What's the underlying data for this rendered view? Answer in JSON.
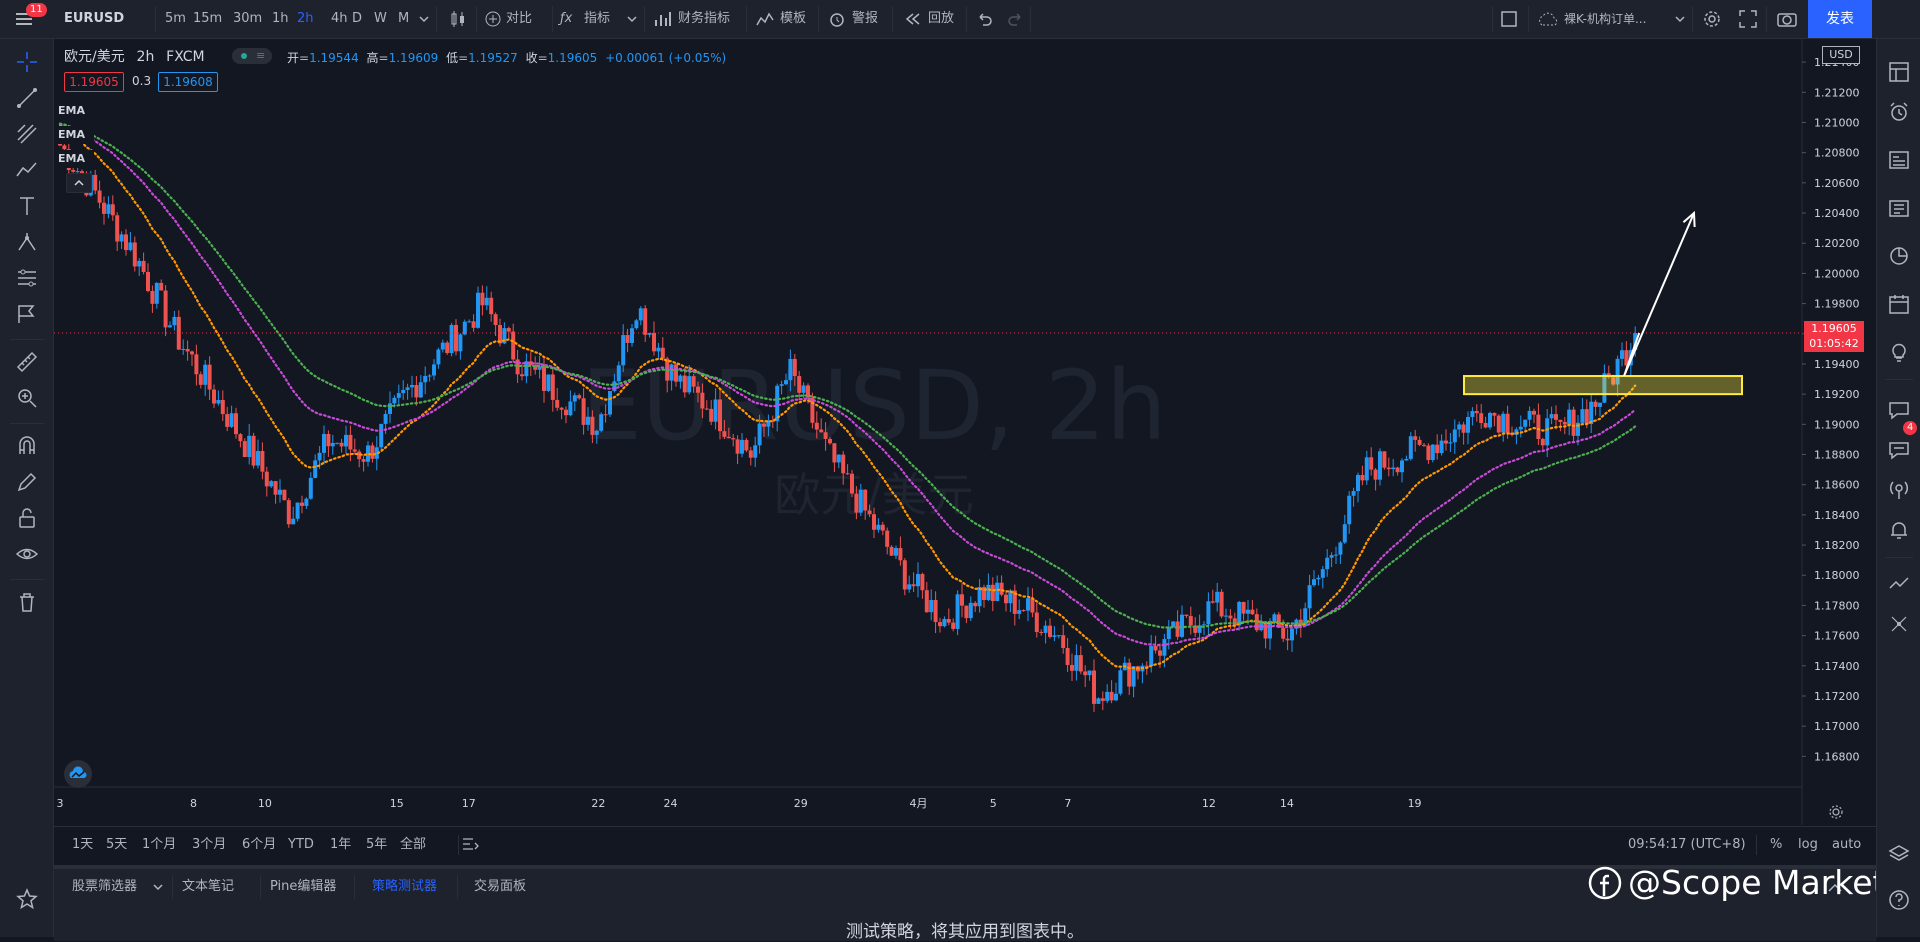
{
  "topbar": {
    "symbol": "EURUSD",
    "notification_count": "11",
    "intervals": [
      "5m",
      "15m",
      "30m",
      "1h",
      "2h",
      "4h",
      "D",
      "W",
      "M"
    ],
    "active_interval": "2h",
    "compare_label": "对比",
    "indicators_label": "指标",
    "financials_label": "财务指标",
    "templates_label": "模板",
    "alert_label": "警报",
    "replay_label": "回放",
    "layout_name": "裸K-机构订单...",
    "publish_label": "发表"
  },
  "legend": {
    "title": "欧元/美元",
    "interval": "2h",
    "source": "FXCM",
    "open_label": "开",
    "open_value": "1.19544",
    "high_label": "高",
    "high_value": "1.19609",
    "low_label": "低",
    "low_value": "1.19527",
    "close_label": "收",
    "close_value": "1.19605",
    "change": "+0.00061 (+0.05%)",
    "bid": "1.19605",
    "spread": "0.3",
    "ask": "1.19608",
    "ema_labels": [
      "EMA",
      "EMA",
      "EMA"
    ]
  },
  "watermark": {
    "symbol": "EURUSD, 2h",
    "name": "欧元/美元"
  },
  "price_axis": {
    "currency": "USD",
    "ticks": [
      "1.21400",
      "1.21200",
      "1.21000",
      "1.20800",
      "1.20600",
      "1.20400",
      "1.20200",
      "1.20000",
      "1.19800",
      "1.19600",
      "1.19400",
      "1.19200",
      "1.19000",
      "1.18800",
      "1.18600",
      "1.18400",
      "1.18200",
      "1.18000",
      "1.17800",
      "1.17600",
      "1.17400",
      "1.17200",
      "1.17000",
      "1.16800"
    ],
    "current_price": "1.19605",
    "countdown": "01:05:42"
  },
  "time_axis": {
    "ticks": [
      "3",
      "8",
      "10",
      "15",
      "17",
      "22",
      "24",
      "29",
      "4月",
      "5",
      "7",
      "12",
      "14",
      "19"
    ]
  },
  "range_bar": {
    "ranges": [
      "1天",
      "5天",
      "1个月",
      "3个月",
      "6个月",
      "YTD",
      "1年",
      "5年",
      "全部"
    ],
    "clock": "09:54:17 (UTC+8)",
    "percent_label": "%",
    "log_label": "log",
    "auto_label": "auto"
  },
  "bottom_panel": {
    "tabs": [
      "股票筛选器",
      "文本笔记",
      "Pine编辑器",
      "策略测试器",
      "交易面板"
    ],
    "active_tab": "策略测试器",
    "message": "测试策略，将其应用到图表中。"
  },
  "overlay": {
    "brand_text": "@Scope Markets"
  },
  "rightbar": {
    "badge_count": "4"
  },
  "colors": {
    "background": "#131722",
    "up": "#2196f3",
    "down": "#ef5350",
    "ema_fast": "#ff9800",
    "ema_mid": "#c84bd8",
    "ema_slow": "#4caf50",
    "zone": "#ffeb3b",
    "accent": "#2962ff"
  },
  "chart_data": {
    "type": "candlestick",
    "symbol": "EURUSD",
    "interval": "2h",
    "ylim": [
      1.1665,
      1.215
    ],
    "close_path": [
      {
        "d": "3",
        "p": 1.2085
      },
      {
        "d": "4",
        "p": 1.205
      },
      {
        "d": "5",
        "p": 1.201
      },
      {
        "d": "6",
        "p": 1.196
      },
      {
        "d": "7",
        "p": 1.192
      },
      {
        "d": "8",
        "p": 1.188
      },
      {
        "d": "9",
        "p": 1.184
      },
      {
        "d": "10",
        "p": 1.189
      },
      {
        "d": "11",
        "p": 1.188
      },
      {
        "d": "12",
        "p": 1.192
      },
      {
        "d": "13",
        "p": 1.195
      },
      {
        "d": "14",
        "p": 1.198
      },
      {
        "d": "15",
        "p": 1.194
      },
      {
        "d": "16",
        "p": 1.192
      },
      {
        "d": "17",
        "p": 1.19
      },
      {
        "d": "18",
        "p": 1.198
      },
      {
        "d": "19",
        "p": 1.193
      },
      {
        "d": "20",
        "p": 1.191
      },
      {
        "d": "22",
        "p": 1.188
      },
      {
        "d": "23",
        "p": 1.1935
      },
      {
        "d": "24",
        "p": 1.188
      },
      {
        "d": "25",
        "p": 1.184
      },
      {
        "d": "26",
        "p": 1.18
      },
      {
        "d": "27",
        "p": 1.177
      },
      {
        "d": "28",
        "p": 1.179
      },
      {
        "d": "29",
        "p": 1.178
      },
      {
        "d": "30",
        "p": 1.176
      },
      {
        "d": "31",
        "p": 1.172
      },
      {
        "d": "4月",
        "p": 1.174
      },
      {
        "d": "2",
        "p": 1.176
      },
      {
        "d": "3",
        "p": 1.178
      },
      {
        "d": "4",
        "p": 1.177
      },
      {
        "d": "5",
        "p": 1.176
      },
      {
        "d": "6",
        "p": 1.181
      },
      {
        "d": "7",
        "p": 1.187
      },
      {
        "d": "8",
        "p": 1.188
      },
      {
        "d": "9",
        "p": 1.189
      },
      {
        "d": "10",
        "p": 1.191
      },
      {
        "d": "11",
        "p": 1.19
      },
      {
        "d": "12",
        "p": 1.1895
      },
      {
        "d": "13",
        "p": 1.1915
      },
      {
        "d": "14",
        "p": 1.196
      }
    ],
    "demand_zone": [
      1.192,
      1.1932
    ],
    "projection": [
      1.19605,
      1.1932,
      1.204
    ]
  }
}
